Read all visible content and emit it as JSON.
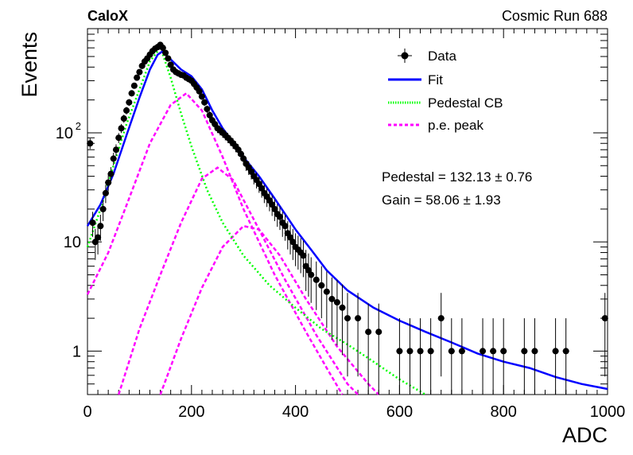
{
  "header": {
    "left_label": "CaloX",
    "right_label": "Cosmic Run 688"
  },
  "fit_info": {
    "pedestal": "Pedestal = 132.13 ± 0.76",
    "gain": "Gain = 58.06 ± 1.93"
  },
  "colors": {
    "data": "#000000",
    "fit": "#0000ff",
    "pedestal": "#00ff00",
    "pe_peak": "#ff00ff"
  },
  "chart_data": {
    "type": "scatter",
    "xlabel": "ADC",
    "ylabel": "Events",
    "xlim": [
      0,
      1000
    ],
    "ylim": [
      0.4,
      900
    ],
    "yscale": "log",
    "x_ticks": [
      "0",
      "200",
      "400",
      "600",
      "800",
      "1000"
    ],
    "y_ticks": [
      {
        "value": 1,
        "label": "1"
      },
      {
        "value": 10,
        "label": "10"
      },
      {
        "value": 100,
        "label": "10",
        "sup": "2"
      }
    ],
    "legend": {
      "position": "top-right",
      "entries": [
        {
          "label": "Data",
          "style": "marker",
          "color": "#000000"
        },
        {
          "label": "Fit",
          "style": "line",
          "color": "#0000ff"
        },
        {
          "label": "Pedestal CB",
          "style": "dotted",
          "color": "#00ff00"
        },
        {
          "label": "p.e. peak",
          "style": "dashed",
          "color": "#ff00ff"
        }
      ]
    },
    "series": [
      {
        "name": "Data",
        "style": "points-with-errors",
        "points": [
          [
            5,
            80
          ],
          [
            10,
            15
          ],
          [
            15,
            10
          ],
          [
            20,
            11
          ],
          [
            25,
            14
          ],
          [
            30,
            20
          ],
          [
            35,
            28
          ],
          [
            40,
            35
          ],
          [
            45,
            42
          ],
          [
            50,
            58
          ],
          [
            55,
            70
          ],
          [
            60,
            90
          ],
          [
            65,
            110
          ],
          [
            70,
            135
          ],
          [
            75,
            160
          ],
          [
            80,
            190
          ],
          [
            85,
            230
          ],
          [
            90,
            270
          ],
          [
            95,
            320
          ],
          [
            100,
            360
          ],
          [
            105,
            410
          ],
          [
            110,
            450
          ],
          [
            115,
            480
          ],
          [
            120,
            520
          ],
          [
            125,
            560
          ],
          [
            130,
            590
          ],
          [
            135,
            610
          ],
          [
            140,
            640
          ],
          [
            145,
            600
          ],
          [
            150,
            540
          ],
          [
            155,
            480
          ],
          [
            160,
            420
          ],
          [
            165,
            380
          ],
          [
            170,
            360
          ],
          [
            175,
            350
          ],
          [
            180,
            340
          ],
          [
            185,
            335
          ],
          [
            190,
            320
          ],
          [
            195,
            310
          ],
          [
            200,
            300
          ],
          [
            205,
            280
          ],
          [
            210,
            260
          ],
          [
            215,
            240
          ],
          [
            220,
            215
          ],
          [
            225,
            190
          ],
          [
            230,
            165
          ],
          [
            235,
            145
          ],
          [
            240,
            130
          ],
          [
            245,
            120
          ],
          [
            250,
            110
          ],
          [
            255,
            105
          ],
          [
            260,
            100
          ],
          [
            265,
            95
          ],
          [
            270,
            90
          ],
          [
            275,
            85
          ],
          [
            280,
            80
          ],
          [
            285,
            75
          ],
          [
            290,
            70
          ],
          [
            295,
            64
          ],
          [
            300,
            58
          ],
          [
            305,
            52
          ],
          [
            310,
            48
          ],
          [
            315,
            44
          ],
          [
            320,
            40
          ],
          [
            325,
            37
          ],
          [
            330,
            34
          ],
          [
            335,
            31
          ],
          [
            340,
            28
          ],
          [
            345,
            26
          ],
          [
            350,
            24
          ],
          [
            355,
            22
          ],
          [
            360,
            20
          ],
          [
            365,
            18
          ],
          [
            370,
            17
          ],
          [
            375,
            15
          ],
          [
            380,
            14
          ],
          [
            385,
            12
          ],
          [
            390,
            11
          ],
          [
            395,
            10
          ],
          [
            400,
            9
          ],
          [
            405,
            8.5
          ],
          [
            410,
            8
          ],
          [
            415,
            7.5
          ],
          [
            420,
            6
          ],
          [
            425,
            5.5
          ],
          [
            430,
            5
          ],
          [
            440,
            4.5
          ],
          [
            450,
            4
          ],
          [
            460,
            3.5
          ],
          [
            470,
            3
          ],
          [
            480,
            2.8
          ],
          [
            490,
            2.5
          ],
          [
            500,
            2
          ],
          [
            520,
            2
          ],
          [
            540,
            1.5
          ],
          [
            560,
            1.5
          ],
          [
            600,
            1
          ],
          [
            620,
            1
          ],
          [
            640,
            1
          ],
          [
            660,
            1
          ],
          [
            680,
            2
          ],
          [
            700,
            1
          ],
          [
            720,
            1
          ],
          [
            760,
            1
          ],
          [
            780,
            1
          ],
          [
            800,
            1
          ],
          [
            840,
            1
          ],
          [
            860,
            1
          ],
          [
            900,
            1
          ],
          [
            920,
            1
          ],
          [
            995,
            2
          ]
        ]
      },
      {
        "name": "Fit",
        "style": "line",
        "points": [
          [
            0,
            14
          ],
          [
            25,
            22
          ],
          [
            50,
            42
          ],
          [
            75,
            95
          ],
          [
            100,
            210
          ],
          [
            120,
            380
          ],
          [
            135,
            520
          ],
          [
            145,
            560
          ],
          [
            160,
            470
          ],
          [
            180,
            380
          ],
          [
            200,
            330
          ],
          [
            220,
            250
          ],
          [
            240,
            160
          ],
          [
            260,
            110
          ],
          [
            280,
            82
          ],
          [
            300,
            60
          ],
          [
            330,
            40
          ],
          [
            360,
            25
          ],
          [
            400,
            13
          ],
          [
            430,
            8.5
          ],
          [
            460,
            5.5
          ],
          [
            500,
            3.6
          ],
          [
            550,
            2.5
          ],
          [
            600,
            1.9
          ],
          [
            650,
            1.5
          ],
          [
            700,
            1.2
          ],
          [
            750,
            0.95
          ],
          [
            800,
            0.8
          ],
          [
            850,
            0.7
          ],
          [
            900,
            0.58
          ],
          [
            950,
            0.5
          ],
          [
            1000,
            0.45
          ]
        ]
      },
      {
        "name": "Pedestal CB",
        "style": "dotted",
        "points": [
          [
            0,
            9
          ],
          [
            25,
            20
          ],
          [
            50,
            50
          ],
          [
            75,
            120
          ],
          [
            100,
            250
          ],
          [
            120,
            450
          ],
          [
            135,
            560
          ],
          [
            145,
            520
          ],
          [
            160,
            320
          ],
          [
            180,
            150
          ],
          [
            200,
            75
          ],
          [
            230,
            30
          ],
          [
            260,
            15
          ],
          [
            300,
            7.5
          ],
          [
            350,
            4
          ],
          [
            400,
            2.5
          ],
          [
            450,
            1.6
          ],
          [
            500,
            1.15
          ],
          [
            550,
            0.8
          ],
          [
            600,
            0.55
          ],
          [
            650,
            0.4
          ]
        ]
      },
      {
        "name": "p.e. peak",
        "style": "dashed",
        "curves": [
          [
            [
              0,
              3.3
            ],
            [
              40,
              8
            ],
            [
              80,
              25
            ],
            [
              120,
              80
            ],
            [
              160,
              180
            ],
            [
              190,
              230
            ],
            [
              220,
              160
            ],
            [
              260,
              60
            ],
            [
              300,
              20
            ],
            [
              360,
              5
            ],
            [
              420,
              1.5
            ],
            [
              460,
              0.7
            ],
            [
              490,
              0.4
            ]
          ],
          [
            [
              60,
              0.4
            ],
            [
              100,
              1.6
            ],
            [
              140,
              5
            ],
            [
              180,
              15
            ],
            [
              220,
              38
            ],
            [
              250,
              48
            ],
            [
              280,
              37
            ],
            [
              320,
              16
            ],
            [
              380,
              4.5
            ],
            [
              440,
              1.4
            ],
            [
              500,
              0.5
            ],
            [
              520,
              0.4
            ]
          ],
          [
            [
              140,
              0.4
            ],
            [
              180,
              1.3
            ],
            [
              220,
              3.8
            ],
            [
              260,
              9
            ],
            [
              300,
              14
            ],
            [
              330,
              13
            ],
            [
              370,
              7.5
            ],
            [
              420,
              3
            ],
            [
              480,
              1.1
            ],
            [
              540,
              0.5
            ],
            [
              560,
              0.4
            ]
          ]
        ]
      }
    ]
  }
}
